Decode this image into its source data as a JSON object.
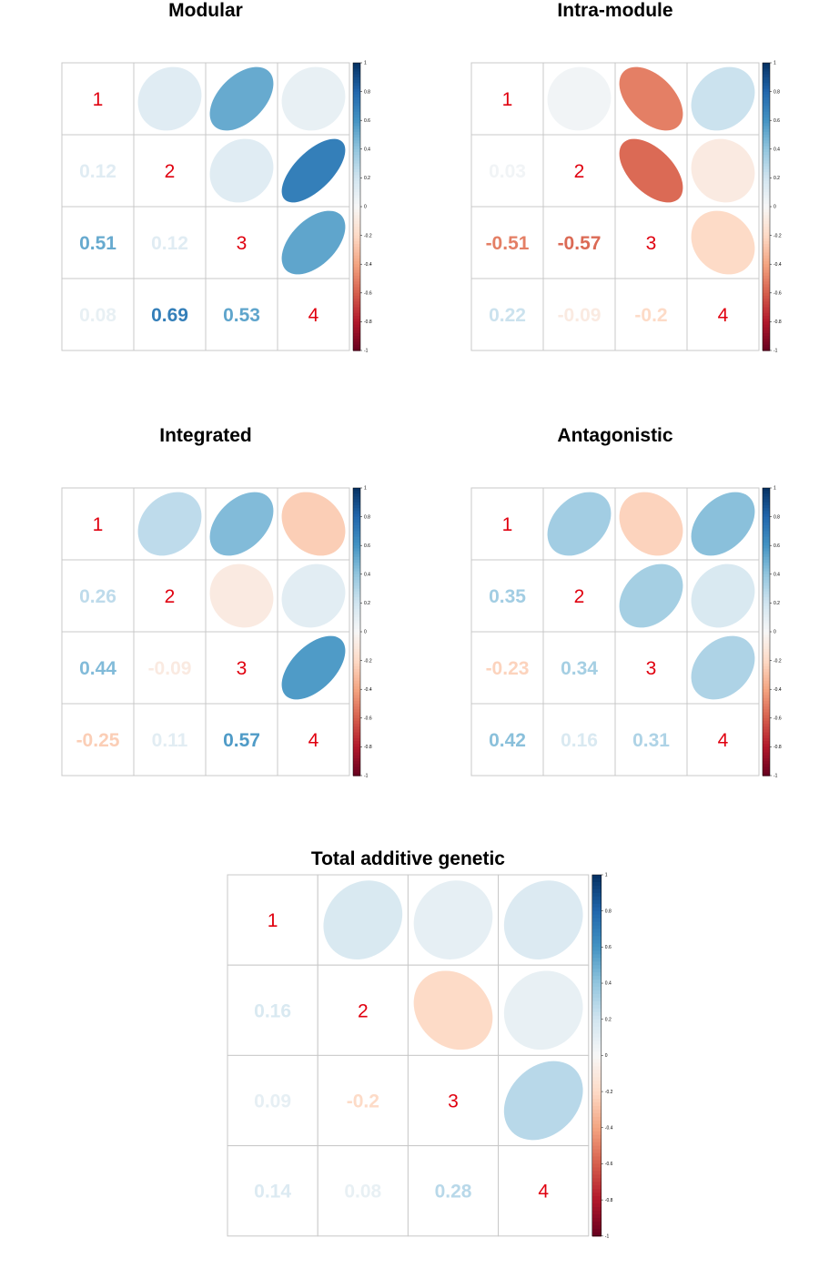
{
  "colors": {
    "diagonal_label": "#e0000f",
    "grid_line": "#c8c8c8",
    "scale_neg_end": "#67001f",
    "scale_mid": "#f7f7f7",
    "scale_pos_end": "#053061"
  },
  "chart_data": [
    {
      "type": "heatmap",
      "title": "Modular",
      "variables": [
        "1",
        "2",
        "3",
        "4"
      ],
      "matrix": [
        [
          1,
          0.12,
          0.51,
          0.08
        ],
        [
          0.12,
          1,
          0.12,
          0.69
        ],
        [
          0.51,
          0.12,
          1,
          0.53
        ],
        [
          0.08,
          0.69,
          0.53,
          1
        ]
      ],
      "lower_labels": [
        [
          "0.12",
          "0.51",
          "0.08"
        ],
        [
          "0.12",
          "0.69"
        ],
        [
          "0.53"
        ]
      ],
      "color_limits": [
        -1,
        1
      ],
      "colorbar_ticks": [
        "1",
        "0.8",
        "0.6",
        "0.4",
        "0.2",
        "0",
        "-0.2",
        "-0.4",
        "-0.6",
        "-0.8",
        "-1"
      ],
      "legend": "right"
    },
    {
      "type": "heatmap",
      "title": "Intra-module",
      "variables": [
        "1",
        "2",
        "3",
        "4"
      ],
      "matrix": [
        [
          1,
          0.03,
          -0.51,
          0.22
        ],
        [
          0.03,
          1,
          -0.57,
          -0.09
        ],
        [
          -0.51,
          -0.57,
          1,
          -0.2
        ],
        [
          0.22,
          -0.09,
          -0.2,
          1
        ]
      ],
      "lower_labels": [
        [
          "0.03",
          "-0.51",
          "0.22"
        ],
        [
          "-0.57",
          "-0.09"
        ],
        [
          "-0.2"
        ]
      ],
      "color_limits": [
        -1,
        1
      ],
      "colorbar_ticks": [
        "1",
        "0.8",
        "0.6",
        "0.4",
        "0.2",
        "0",
        "-0.2",
        "-0.4",
        "-0.6",
        "-0.8",
        "-1"
      ],
      "legend": "right"
    },
    {
      "type": "heatmap",
      "title": "Integrated",
      "variables": [
        "1",
        "2",
        "3",
        "4"
      ],
      "matrix": [
        [
          1,
          0.26,
          0.44,
          -0.25
        ],
        [
          0.26,
          1,
          -0.09,
          0.11
        ],
        [
          0.44,
          -0.09,
          1,
          0.57
        ],
        [
          -0.25,
          0.11,
          0.57,
          1
        ]
      ],
      "lower_labels": [
        [
          "0.26",
          "0.44",
          "-0.25"
        ],
        [
          "-0.09",
          "0.11"
        ],
        [
          "0.57"
        ]
      ],
      "color_limits": [
        -1,
        1
      ],
      "colorbar_ticks": [
        "1",
        "0.8",
        "0.6",
        "0.4",
        "0.2",
        "0",
        "-0.2",
        "-0.4",
        "-0.6",
        "-0.8",
        "-1"
      ],
      "legend": "right"
    },
    {
      "type": "heatmap",
      "title": "Antagonistic",
      "variables": [
        "1",
        "2",
        "3",
        "4"
      ],
      "matrix": [
        [
          1,
          0.35,
          -0.23,
          0.42
        ],
        [
          0.35,
          1,
          0.34,
          0.16
        ],
        [
          -0.23,
          0.34,
          1,
          0.31
        ],
        [
          0.42,
          0.16,
          0.31,
          1
        ]
      ],
      "lower_labels": [
        [
          "0.35",
          "-0.23",
          "0.42"
        ],
        [
          "0.34",
          "0.16"
        ],
        [
          "0.31"
        ]
      ],
      "color_limits": [
        -1,
        1
      ],
      "colorbar_ticks": [
        "1",
        "0.8",
        "0.6",
        "0.4",
        "0.2",
        "0",
        "-0.2",
        "-0.4",
        "-0.6",
        "-0.8",
        "-1"
      ],
      "legend": "right"
    },
    {
      "type": "heatmap",
      "title": "Total additive genetic",
      "variables": [
        "1",
        "2",
        "3",
        "4"
      ],
      "matrix": [
        [
          1,
          0.16,
          0.09,
          0.14
        ],
        [
          0.16,
          1,
          -0.2,
          0.08
        ],
        [
          0.09,
          -0.2,
          1,
          0.28
        ],
        [
          0.14,
          0.08,
          0.28,
          1
        ]
      ],
      "lower_labels": [
        [
          "0.16",
          "0.09",
          "0.14"
        ],
        [
          "-0.2",
          "0.08"
        ],
        [
          "0.28"
        ]
      ],
      "color_limits": [
        -1,
        1
      ],
      "colorbar_ticks": [
        "1",
        "0.8",
        "0.6",
        "0.4",
        "0.2",
        "0",
        "-0.2",
        "-0.4",
        "-0.6",
        "-0.8",
        "-1"
      ],
      "legend": "right"
    }
  ]
}
